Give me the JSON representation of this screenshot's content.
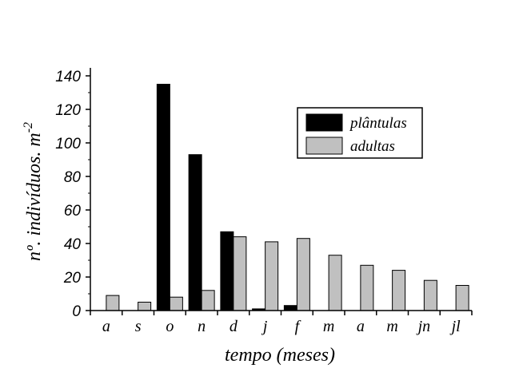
{
  "chart_data": {
    "type": "bar",
    "categories": [
      "a",
      "s",
      "o",
      "n",
      "d",
      "j",
      "f",
      "m",
      "a",
      "m",
      "jn",
      "jl"
    ],
    "series": [
      {
        "name": "plântulas",
        "values": [
          0,
          0,
          135,
          93,
          47,
          1,
          3,
          0,
          0,
          0,
          0,
          0
        ],
        "color": "#000000"
      },
      {
        "name": "adultas",
        "values": [
          9,
          5,
          8,
          12,
          44,
          41,
          43,
          33,
          27,
          24,
          18,
          15
        ],
        "color": "#c0c0c0"
      }
    ],
    "title": "",
    "xlabel": "tempo (meses)",
    "ylabel": "nº. indivíduos. m",
    "ylabel_superscript": "-2",
    "ylim": [
      0,
      140
    ],
    "yticks": [
      "0",
      "20",
      "40",
      "60",
      "80",
      "100",
      "120",
      "140"
    ],
    "legend_placement": "top-right",
    "grid": false
  }
}
